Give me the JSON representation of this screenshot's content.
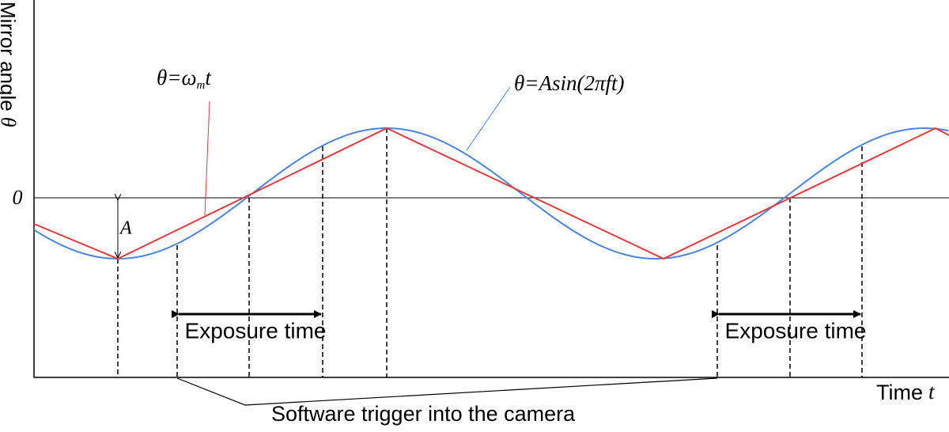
{
  "y_axis_label": {
    "text": "Mirror angle",
    "symbol": "θ"
  },
  "x_axis_label": {
    "text": "Time",
    "symbol": "t"
  },
  "zero_label": "0",
  "amplitude_label": "A",
  "linear_label": {
    "main": "θ=ω",
    "sub": "m",
    "tail": "t"
  },
  "sine_label": "θ=Asin(2πft)",
  "exposure_labels": [
    "Exposure time",
    "Exposure time"
  ],
  "trigger_label": "Software trigger into the camera"
}
